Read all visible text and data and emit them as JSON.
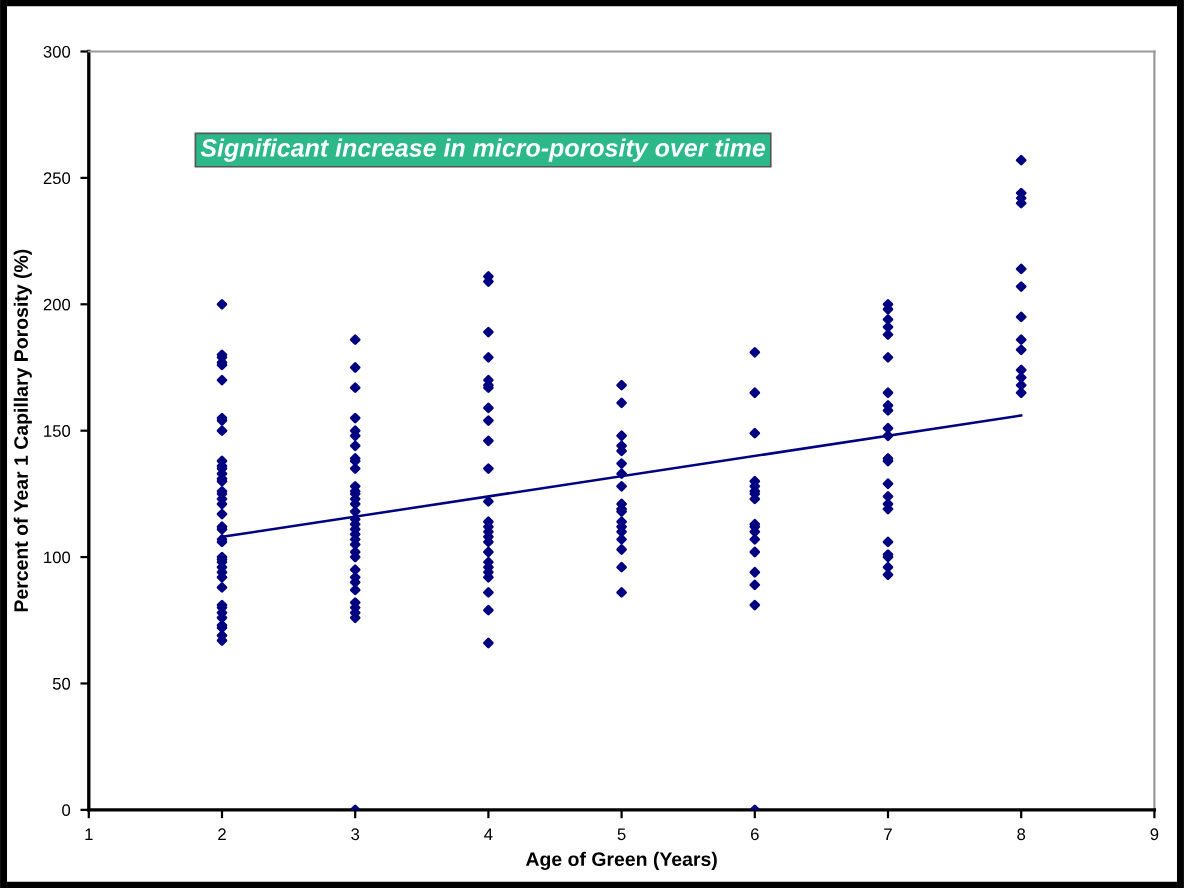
{
  "chart_data": {
    "type": "scatter",
    "xlabel": "Age of Green (Years)",
    "ylabel": "Percent of Year 1 Capillary Porosity (%)",
    "annotations": [
      "Significant increase in micro-porosity over time"
    ],
    "xlim": [
      1,
      9
    ],
    "xticks": [
      1,
      2,
      3,
      4,
      5,
      6,
      7,
      8,
      9
    ],
    "ylim": [
      0,
      300
    ],
    "yticks": [
      0,
      50,
      100,
      150,
      200,
      250,
      300
    ],
    "grid": false,
    "legend": false,
    "marker": "diamond",
    "series": [
      {
        "color": "#000080",
        "x": [
          2,
          2,
          2,
          2,
          2,
          2,
          2,
          2,
          2,
          2,
          2,
          2,
          2,
          2,
          2,
          2,
          2,
          2,
          2,
          2,
          2,
          2,
          2,
          2,
          2,
          2,
          2,
          2,
          2,
          2,
          2,
          2,
          2,
          2,
          2,
          2,
          2,
          2,
          2,
          3,
          3,
          3,
          3,
          3,
          3,
          3,
          3,
          3,
          3,
          3,
          3,
          3,
          3,
          3,
          3,
          3,
          3,
          3,
          3,
          3,
          3,
          3,
          3,
          3,
          3,
          3,
          3,
          3,
          3,
          3,
          3,
          3,
          4,
          4,
          4,
          4,
          4,
          4,
          4,
          4,
          4,
          4,
          4,
          4,
          4,
          4,
          4,
          4,
          4,
          4,
          4,
          4,
          4,
          4,
          4,
          4,
          4,
          5,
          5,
          5,
          5,
          5,
          5,
          5,
          5,
          5,
          5,
          5,
          5,
          5,
          5,
          5,
          5,
          5,
          5,
          6,
          6,
          6,
          6,
          6,
          6,
          6,
          6,
          6,
          6,
          6,
          6,
          6,
          6,
          6,
          6,
          6,
          7,
          7,
          7,
          7,
          7,
          7,
          7,
          7,
          7,
          7,
          7,
          7,
          7,
          7,
          7,
          7,
          7,
          7,
          7,
          7,
          7,
          7,
          8,
          8,
          8,
          8,
          8,
          8,
          8,
          8,
          8,
          8,
          8,
          8,
          8
        ],
        "values": [
          200,
          180,
          179,
          177,
          176,
          170,
          155,
          154,
          150,
          138,
          136,
          135,
          133,
          131,
          130,
          126,
          125,
          123,
          121,
          117,
          112,
          111,
          107,
          106,
          100,
          99,
          98,
          96,
          94,
          92,
          88,
          81,
          80,
          78,
          76,
          73,
          72,
          69,
          67,
          186,
          175,
          167,
          155,
          150,
          148,
          144,
          139,
          138,
          135,
          128,
          126,
          125,
          123,
          121,
          118,
          115,
          113,
          111,
          109,
          107,
          105,
          102,
          100,
          95,
          92,
          90,
          87,
          82,
          80,
          78,
          76,
          0,
          211,
          209,
          189,
          179,
          170,
          168,
          167,
          159,
          154,
          146,
          135,
          122,
          114,
          112,
          110,
          108,
          106,
          102,
          98,
          96,
          94,
          92,
          86,
          79,
          66,
          168,
          161,
          148,
          144,
          142,
          137,
          133,
          128,
          121,
          119,
          118,
          114,
          112,
          110,
          107,
          103,
          96,
          86,
          181,
          165,
          149,
          130,
          128,
          126,
          125,
          123,
          113,
          112,
          110,
          107,
          102,
          94,
          89,
          81,
          0,
          200,
          198,
          194,
          191,
          188,
          179,
          165,
          160,
          158,
          151,
          148,
          139,
          138,
          129,
          124,
          121,
          119,
          106,
          101,
          100,
          96,
          93,
          257,
          244,
          242,
          240,
          214,
          207,
          195,
          186,
          182,
          174,
          171,
          168,
          165
        ]
      },
      {
        "type": "line",
        "color": "#000080",
        "x": [
          2,
          8
        ],
        "values": [
          108,
          156
        ],
        "marker": "none"
      }
    ]
  }
}
